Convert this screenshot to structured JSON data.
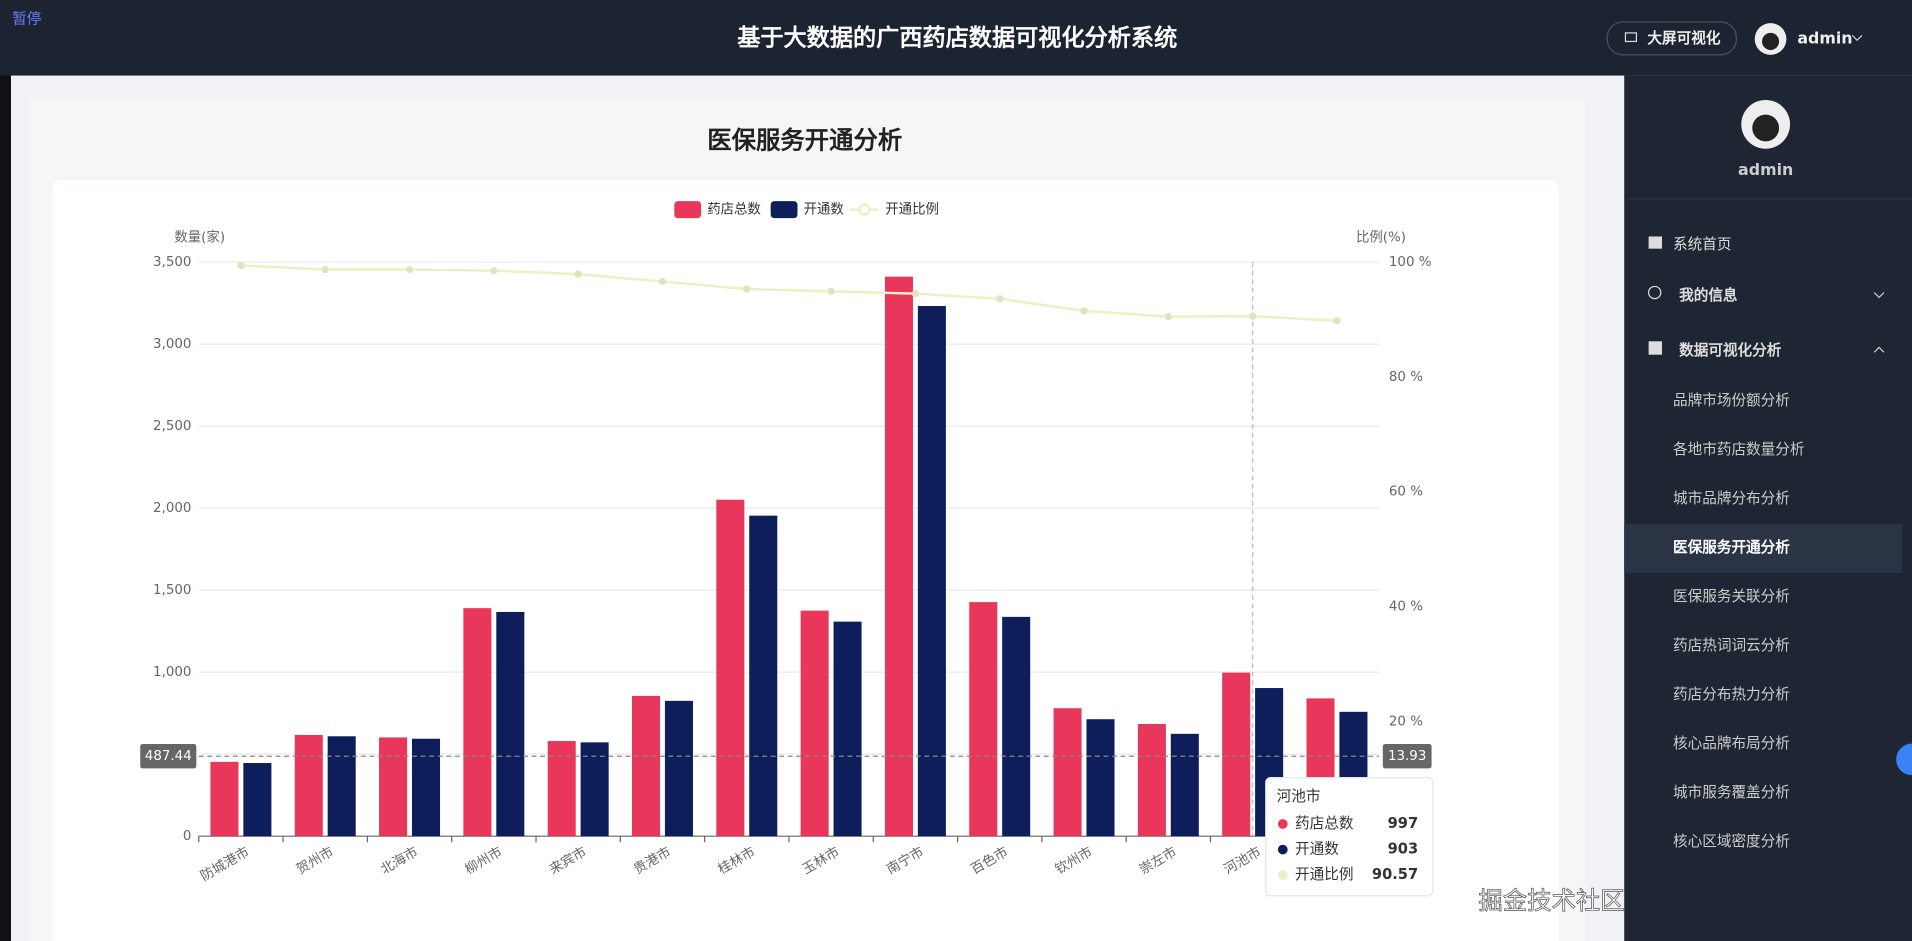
{
  "header": {
    "pause": "暂停",
    "title": "基于大数据的广西药店数据可视化分析系统",
    "button": "大屏可视化",
    "user": "admin"
  },
  "sidebar": {
    "user": "admin",
    "menu": [
      "系统首页",
      "我的信息",
      "数据可视化分析"
    ],
    "submenu": [
      "品牌市场份额分析",
      "各地市药店数量分析",
      "城市品牌分布分析",
      "医保服务开通分析",
      "医保服务关联分析",
      "药店热词词云分析",
      "药店分布热力分析",
      "核心品牌布局分析",
      "城市服务覆盖分析",
      "核心区域密度分析"
    ]
  },
  "page": {
    "title": "医保服务开通分析"
  },
  "watermark": "掘金技术社区 @ 计算机毕业设计小途",
  "chart_data": {
    "type": "bar",
    "categories": [
      "防城港市",
      "贺州市",
      "北海市",
      "柳州市",
      "来宾市",
      "贵港市",
      "桂林市",
      "玉林市",
      "南宁市",
      "百色市",
      "钦州市",
      "崇左市",
      "河池市",
      null
    ],
    "series": [
      {
        "name": "药店总数",
        "color": "#e8375a",
        "values": [
          453,
          617,
          602,
          1390,
          580,
          855,
          2051,
          1375,
          3411,
          1427,
          780,
          684,
          997,
          840
        ]
      },
      {
        "name": "开通数",
        "color": "#0e1e5b",
        "values": [
          446,
          609,
          594,
          1367,
          572,
          825,
          1954,
          1308,
          3232,
          1337,
          713,
          624,
          903,
          758
        ]
      },
      {
        "name": "开通比例",
        "color": "#f0eec6",
        "type": "line",
        "axis": "y2",
        "values": [
          99.4,
          98.7,
          98.7,
          98.5,
          97.9,
          96.6,
          95.3,
          94.9,
          94.5,
          93.6,
          91.5,
          90.5,
          90.57,
          89.8
        ]
      }
    ],
    "y_label": "数量(家)",
    "y2_label": "比例(%)",
    "ylim": [
      0,
      3500
    ],
    "yticks": [
      0,
      500,
      {
        "value": 1000,
        "label": "1,000"
      },
      {
        "value": 1500,
        "label": "1,500"
      },
      {
        "value": 2000,
        "label": "2,000"
      },
      {
        "value": 2500,
        "label": "2,500"
      },
      {
        "value": 3000,
        "label": "3,000"
      },
      {
        "value": 3500,
        "label": "3,500"
      }
    ],
    "y2lim": [
      0,
      100
    ],
    "y2ticks": [
      {
        "value": 20,
        "label": "20 %"
      },
      {
        "value": 40,
        "label": "40 %"
      },
      {
        "value": 60,
        "label": "60 %"
      },
      {
        "value": 80,
        "label": "80 %"
      },
      {
        "value": 100,
        "label": "100 %"
      }
    ],
    "grid": true,
    "legend": "top",
    "axis_pointer": {
      "y": 487.44,
      "y2": 13.93
    }
  }
}
